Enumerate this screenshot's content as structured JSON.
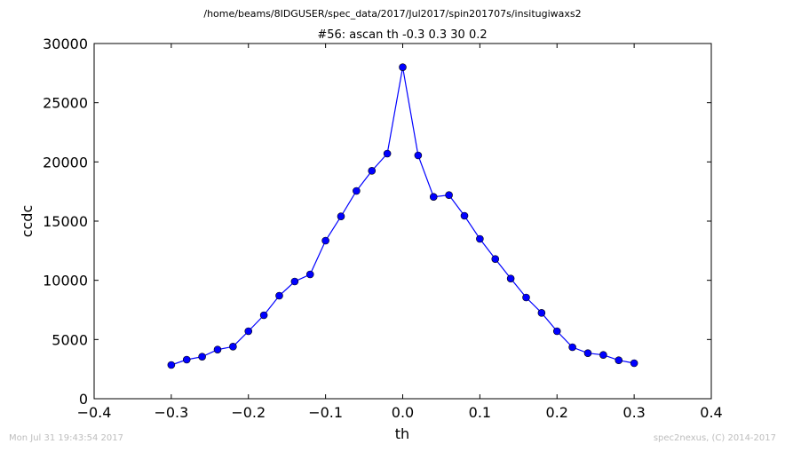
{
  "header": {
    "path": "/home/beams/8IDGUSER/spec_data/2017/Jul2017/spin201707s/insitugiwaxs2"
  },
  "footer": {
    "timestamp": "Mon Jul 31 19:43:54 2017",
    "credit": "spec2nexus, (C) 2014-2017"
  },
  "chart_data": {
    "type": "line",
    "title": "#56: ascan  th -0.3 0.3  30 0.2",
    "xlabel": "th",
    "ylabel": "ccdc",
    "xlim": [
      -0.4,
      0.4
    ],
    "ylim": [
      0,
      30000
    ],
    "x_ticks": [
      -0.4,
      -0.3,
      -0.2,
      -0.1,
      0.0,
      0.1,
      0.2,
      0.3,
      0.4
    ],
    "x_tick_labels": [
      "−0.4",
      "−0.3",
      "−0.2",
      "−0.1",
      "0.0",
      "0.1",
      "0.2",
      "0.3",
      "0.4"
    ],
    "y_ticks": [
      0,
      5000,
      10000,
      15000,
      20000,
      25000,
      30000
    ],
    "y_tick_labels": [
      "0",
      "5000",
      "10000",
      "15000",
      "20000",
      "25000",
      "30000"
    ],
    "grid": false,
    "line_color": "#0000ff",
    "marker_color": "#0000ff",
    "x": [
      -0.3,
      -0.28,
      -0.26,
      -0.24,
      -0.22,
      -0.2,
      -0.18,
      -0.16,
      -0.14,
      -0.12,
      -0.1,
      -0.08,
      -0.06,
      -0.04,
      -0.02,
      0.0,
      0.02,
      0.04,
      0.06,
      0.08,
      0.1,
      0.12,
      0.14,
      0.16,
      0.18,
      0.2,
      0.22,
      0.24,
      0.26,
      0.28,
      0.3
    ],
    "y": [
      2850,
      3300,
      3550,
      4150,
      4400,
      5700,
      7050,
      8700,
      9900,
      10500,
      13350,
      15400,
      17550,
      19250,
      20700,
      28000,
      20550,
      17050,
      17200,
      15450,
      13500,
      11800,
      10150,
      8550,
      7250,
      5700,
      4350,
      3850,
      3700,
      3250,
      3000
    ]
  }
}
